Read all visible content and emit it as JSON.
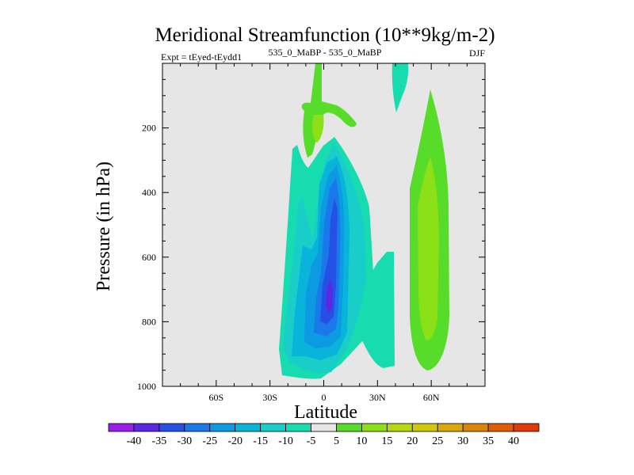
{
  "chart_data": {
    "type": "contour",
    "title": "Meridional Streamfunction (10**9kg/m-2)",
    "subtitle_left": "Expt = tEyed-tEydd1",
    "subtitle_center": "535_0_MaBP - 535_0_MaBP",
    "subtitle_right": "DJF",
    "xlabel": "Latitude",
    "ylabel": "Pressure (in hPa)",
    "xlim": [
      -90,
      90
    ],
    "ylim": [
      1000,
      0
    ],
    "x_ticks": [
      {
        "value": -60,
        "label": "60S"
      },
      {
        "value": -30,
        "label": "30S"
      },
      {
        "value": 0,
        "label": "0"
      },
      {
        "value": 30,
        "label": "30N"
      },
      {
        "value": 60,
        "label": "60N"
      }
    ],
    "y_ticks": [
      {
        "value": 200,
        "label": "200"
      },
      {
        "value": 400,
        "label": "400"
      },
      {
        "value": 600,
        "label": "600"
      },
      {
        "value": 800,
        "label": "800"
      },
      {
        "value": 1000,
        "label": "1000"
      }
    ],
    "colorbar": {
      "levels": [
        -40,
        -35,
        -30,
        -25,
        -20,
        -15,
        -10,
        -5,
        5,
        10,
        15,
        20,
        25,
        30,
        35,
        40
      ],
      "labels": [
        "-40",
        "-35",
        "-30",
        "-25",
        "-20",
        "-15",
        "-10",
        "-5",
        "5",
        "10",
        "15",
        "20",
        "25",
        "30",
        "35",
        "40"
      ],
      "colors": [
        "#9b1dea",
        "#5a28e0",
        "#2550e6",
        "#1a78ea",
        "#0c9be2",
        "#08b4da",
        "#19cdc9",
        "#17dcb0",
        "#e6e6e6",
        "#58dc2a",
        "#8be018",
        "#b5d80e",
        "#d2c70a",
        "#dca808",
        "#de8406",
        "#e25c06",
        "#e03a08"
      ]
    },
    "features": [
      {
        "name": "SH cell",
        "level_min": -35,
        "center_lat": 5,
        "center_p": 720,
        "lat_range": [
          -18,
          13
        ],
        "p_range": [
          225,
          985
        ]
      },
      {
        "name": "upper-tropics positive",
        "level_max": 15,
        "center_lat": -3,
        "center_p": 180,
        "p_range": [
          0,
          290
        ]
      },
      {
        "name": "NH midlatitude cell",
        "level_max": 15,
        "center_lat": 57,
        "center_p": 500,
        "lat_range": [
          46,
          66
        ],
        "p_range": [
          75,
          945
        ]
      },
      {
        "name": "NH negative band",
        "level_min": -10,
        "lat_range": [
          20,
          36
        ],
        "p_range": [
          590,
          935
        ]
      },
      {
        "name": "upper NH negative",
        "level_min": -10,
        "lat_range": [
          40,
          48
        ],
        "p_range": [
          0,
          140
        ]
      }
    ]
  }
}
